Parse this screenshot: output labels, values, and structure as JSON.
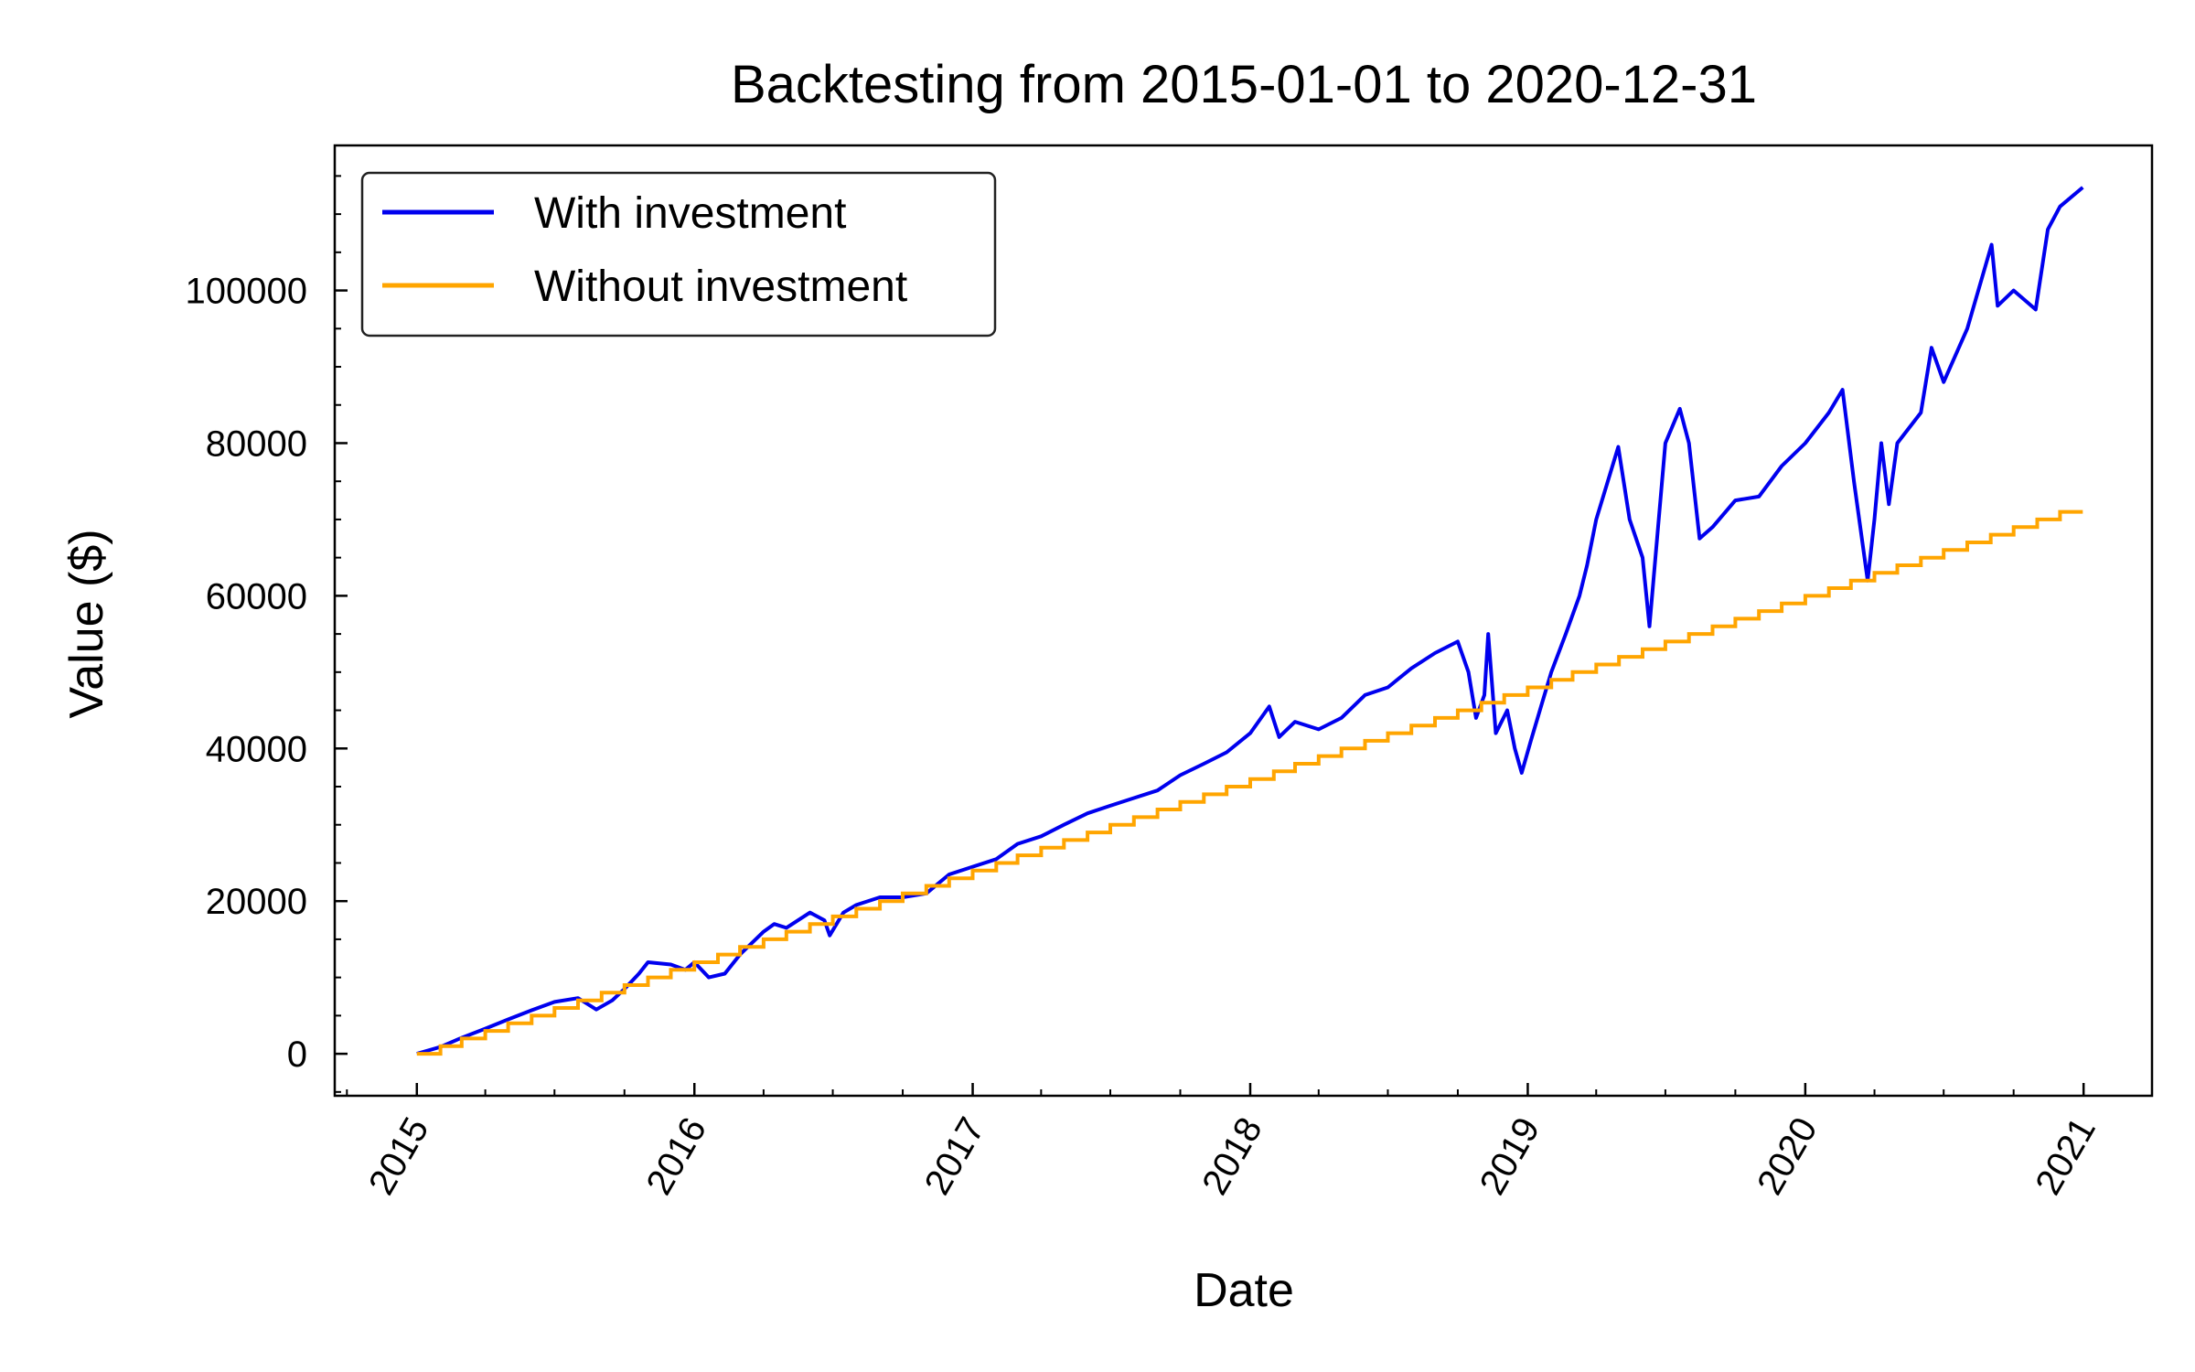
{
  "chart_data": {
    "type": "line",
    "title": "Backtesting from 2015-01-01 to 2020-12-31",
    "xlabel": "Date",
    "ylabel": "Value ($)",
    "xlim": [
      "2014-09-15",
      "2021-04-01"
    ],
    "ylim": [
      -5500,
      119000
    ],
    "x_ticks": [
      "2015",
      "2016",
      "2017",
      "2018",
      "2019",
      "2020",
      "2021"
    ],
    "y_ticks": [
      0,
      20000,
      40000,
      60000,
      80000,
      100000
    ],
    "y_tick_labels": [
      "0",
      "20000",
      "40000",
      "60000",
      "80000",
      "100000"
    ],
    "grid": false,
    "legend_position": "top-left",
    "series": [
      {
        "name": "With investment",
        "color": "#0000ee",
        "points": [
          [
            "2015-01-01",
            0
          ],
          [
            "2015-02-01",
            900
          ],
          [
            "2015-03-01",
            2100
          ],
          [
            "2015-04-01",
            3300
          ],
          [
            "2015-05-01",
            4500
          ],
          [
            "2015-06-01",
            5700
          ],
          [
            "2015-07-01",
            6800
          ],
          [
            "2015-08-01",
            7300
          ],
          [
            "2015-08-25",
            5800
          ],
          [
            "2015-09-15",
            7000
          ],
          [
            "2015-10-01",
            8500
          ],
          [
            "2015-10-20",
            10500
          ],
          [
            "2015-11-01",
            12000
          ],
          [
            "2015-12-01",
            11700
          ],
          [
            "2015-12-20",
            11000
          ],
          [
            "2016-01-01",
            12000
          ],
          [
            "2016-01-20",
            10000
          ],
          [
            "2016-02-10",
            10500
          ],
          [
            "2016-03-01",
            13000
          ],
          [
            "2016-04-01",
            16000
          ],
          [
            "2016-04-15",
            17000
          ],
          [
            "2016-05-01",
            16500
          ],
          [
            "2016-06-01",
            18500
          ],
          [
            "2016-06-20",
            17500
          ],
          [
            "2016-06-27",
            15500
          ],
          [
            "2016-07-15",
            18500
          ],
          [
            "2016-08-01",
            19500
          ],
          [
            "2016-09-01",
            20500
          ],
          [
            "2016-10-01",
            20500
          ],
          [
            "2016-11-01",
            21000
          ],
          [
            "2016-12-01",
            23500
          ],
          [
            "2017-01-01",
            24500
          ],
          [
            "2017-02-01",
            25500
          ],
          [
            "2017-03-01",
            27500
          ],
          [
            "2017-04-01",
            28500
          ],
          [
            "2017-05-01",
            30000
          ],
          [
            "2017-06-01",
            31500
          ],
          [
            "2017-07-01",
            32500
          ],
          [
            "2017-08-01",
            33500
          ],
          [
            "2017-09-01",
            34500
          ],
          [
            "2017-10-01",
            36500
          ],
          [
            "2017-11-01",
            38000
          ],
          [
            "2017-12-01",
            39500
          ],
          [
            "2018-01-01",
            42000
          ],
          [
            "2018-01-26",
            45500
          ],
          [
            "2018-02-08",
            41500
          ],
          [
            "2018-03-01",
            43500
          ],
          [
            "2018-04-01",
            42500
          ],
          [
            "2018-05-01",
            44000
          ],
          [
            "2018-06-01",
            47000
          ],
          [
            "2018-07-01",
            48000
          ],
          [
            "2018-08-01",
            50500
          ],
          [
            "2018-09-01",
            52500
          ],
          [
            "2018-10-01",
            54000
          ],
          [
            "2018-10-15",
            50000
          ],
          [
            "2018-10-25",
            44000
          ],
          [
            "2018-11-05",
            47000
          ],
          [
            "2018-11-10",
            55000
          ],
          [
            "2018-11-20",
            42000
          ],
          [
            "2018-12-05",
            45000
          ],
          [
            "2018-12-15",
            40000
          ],
          [
            "2018-12-24",
            36800
          ],
          [
            "2019-01-05",
            41000
          ],
          [
            "2019-01-20",
            46000
          ],
          [
            "2019-02-01",
            50000
          ],
          [
            "2019-02-20",
            55000
          ],
          [
            "2019-03-10",
            60000
          ],
          [
            "2019-03-20",
            64000
          ],
          [
            "2019-04-01",
            70000
          ],
          [
            "2019-04-30",
            79500
          ],
          [
            "2019-05-15",
            70000
          ],
          [
            "2019-06-01",
            65000
          ],
          [
            "2019-06-10",
            56000
          ],
          [
            "2019-07-01",
            80000
          ],
          [
            "2019-07-20",
            84500
          ],
          [
            "2019-08-01",
            80000
          ],
          [
            "2019-08-15",
            67500
          ],
          [
            "2019-09-01",
            69000
          ],
          [
            "2019-10-01",
            72500
          ],
          [
            "2019-11-01",
            73000
          ],
          [
            "2019-12-01",
            77000
          ],
          [
            "2020-01-01",
            80000
          ],
          [
            "2020-02-01",
            84000
          ],
          [
            "2020-02-19",
            87000
          ],
          [
            "2020-03-05",
            75000
          ],
          [
            "2020-03-23",
            62000
          ],
          [
            "2020-04-01",
            70000
          ],
          [
            "2020-04-10",
            80000
          ],
          [
            "2020-04-20",
            72000
          ],
          [
            "2020-05-01",
            80000
          ],
          [
            "2020-06-01",
            84000
          ],
          [
            "2020-06-15",
            92500
          ],
          [
            "2020-07-01",
            88000
          ],
          [
            "2020-08-01",
            95000
          ],
          [
            "2020-09-02",
            106000
          ],
          [
            "2020-09-10",
            98000
          ],
          [
            "2020-10-01",
            100000
          ],
          [
            "2020-10-30",
            97500
          ],
          [
            "2020-11-15",
            108000
          ],
          [
            "2020-12-01",
            111000
          ],
          [
            "2020-12-31",
            113500
          ]
        ]
      },
      {
        "name": "Without investment",
        "color": "#ffa500",
        "monthly_contribution": 1000,
        "start": "2015-01-01",
        "end": "2020-12-31"
      }
    ]
  }
}
